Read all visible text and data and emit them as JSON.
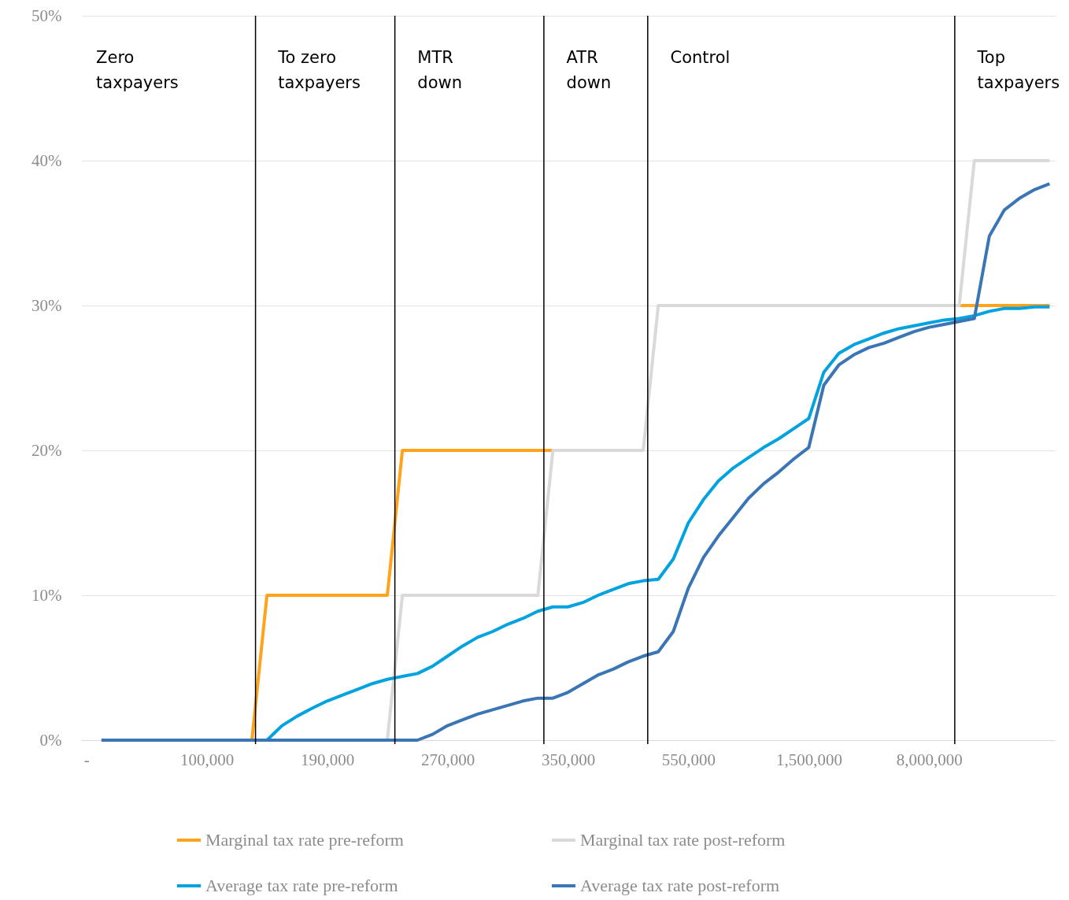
{
  "chart_data": {
    "type": "line",
    "categories": [
      "-",
      null,
      null,
      null,
      null,
      null,
      null,
      null,
      "100,000",
      null,
      null,
      null,
      null,
      null,
      null,
      null,
      "190,000",
      null,
      null,
      null,
      null,
      null,
      null,
      null,
      "270,000",
      null,
      null,
      null,
      null,
      null,
      null,
      null,
      "350,000",
      null,
      null,
      null,
      null,
      null,
      null,
      null,
      "550,000",
      null,
      null,
      null,
      null,
      null,
      null,
      null,
      "1,500,000",
      null,
      null,
      null,
      null,
      null,
      null,
      null,
      "8,000,000",
      null,
      null,
      null,
      null,
      null,
      null,
      null,
      null
    ],
    "ylim": [
      0,
      50
    ],
    "yticks": [
      {
        "value": 0,
        "label": "0%"
      },
      {
        "value": 10,
        "label": "10%"
      },
      {
        "value": 20,
        "label": "20%"
      },
      {
        "value": 30,
        "label": "30%"
      },
      {
        "value": 40,
        "label": "40%"
      },
      {
        "value": 50,
        "label": "50%"
      }
    ],
    "grid": "y",
    "legend": "bottom",
    "marker": "none",
    "line_style": "solid",
    "series": [
      {
        "name": "Marginal tax rate pre-reform",
        "color": "#ffa31a",
        "values": [
          null,
          null,
          null,
          null,
          null,
          null,
          null,
          null,
          null,
          null,
          0,
          0,
          10,
          10,
          10,
          10,
          10,
          10,
          10,
          10,
          10,
          20,
          20,
          20,
          20,
          20,
          20,
          20,
          20,
          20,
          20,
          20,
          null,
          null,
          null,
          null,
          null,
          null,
          null,
          null,
          null,
          null,
          null,
          null,
          null,
          null,
          null,
          null,
          null,
          null,
          null,
          null,
          null,
          null,
          null,
          null,
          null,
          null,
          30,
          30,
          30,
          30,
          30,
          30,
          30
        ]
      },
      {
        "name": "Marginal tax rate post-reform",
        "color": "#d9d9d9",
        "values": [
          null,
          0,
          0,
          0,
          0,
          0,
          0,
          0,
          0,
          0,
          0,
          0,
          0,
          0,
          0,
          0,
          0,
          0,
          0,
          0,
          0,
          10,
          10,
          10,
          10,
          10,
          10,
          10,
          10,
          10,
          10,
          20,
          20,
          20,
          20,
          20,
          20,
          20,
          30,
          30,
          30,
          30,
          30,
          30,
          30,
          30,
          30,
          30,
          30,
          30,
          30,
          30,
          30,
          30,
          30,
          30,
          30,
          30,
          30,
          40,
          40,
          40,
          40,
          40,
          40
        ]
      },
      {
        "name": "Average tax rate pre-reform",
        "color": "#00a3e0",
        "values": [
          null,
          null,
          null,
          null,
          null,
          null,
          null,
          null,
          null,
          null,
          null,
          0,
          0,
          1.0,
          1.65,
          2.2,
          2.7,
          3.1,
          3.5,
          3.9,
          4.2,
          4.4,
          4.6,
          5.1,
          5.8,
          6.5,
          7.1,
          7.5,
          8.0,
          8.4,
          8.9,
          9.2,
          9.2,
          9.5,
          10.0,
          10.4,
          10.8,
          11.0,
          11.1,
          12.5,
          15.0,
          16.6,
          17.9,
          18.8,
          19.5,
          20.2,
          20.8,
          21.5,
          22.2,
          25.4,
          26.7,
          27.3,
          27.7,
          28.1,
          28.4,
          28.6,
          28.8,
          29.0,
          29.1,
          29.3,
          29.6,
          29.8,
          29.8,
          29.9,
          29.9
        ]
      },
      {
        "name": "Average tax rate post-reform",
        "color": "#3a75b5",
        "values": [
          null,
          0,
          0,
          0,
          0,
          0,
          0,
          0,
          0,
          0,
          0,
          0,
          0,
          0,
          0,
          0,
          0,
          0,
          0,
          0,
          0,
          0,
          0,
          0.4,
          1.0,
          1.4,
          1.8,
          2.1,
          2.4,
          2.7,
          2.9,
          2.9,
          3.3,
          3.9,
          4.5,
          4.9,
          5.4,
          5.8,
          6.1,
          7.5,
          10.5,
          12.6,
          14.1,
          15.4,
          16.7,
          17.7,
          18.5,
          19.4,
          20.2,
          24.5,
          25.9,
          26.6,
          27.1,
          27.4,
          27.8,
          28.2,
          28.5,
          28.7,
          28.9,
          29.1,
          34.8,
          36.6,
          37.4,
          38.0,
          38.4
        ]
      }
    ],
    "annotations": [
      "Zero taxpayers",
      "To zero taxpayers",
      "MTR down",
      "ATR down",
      "Control",
      "Top taxpayers"
    ]
  }
}
